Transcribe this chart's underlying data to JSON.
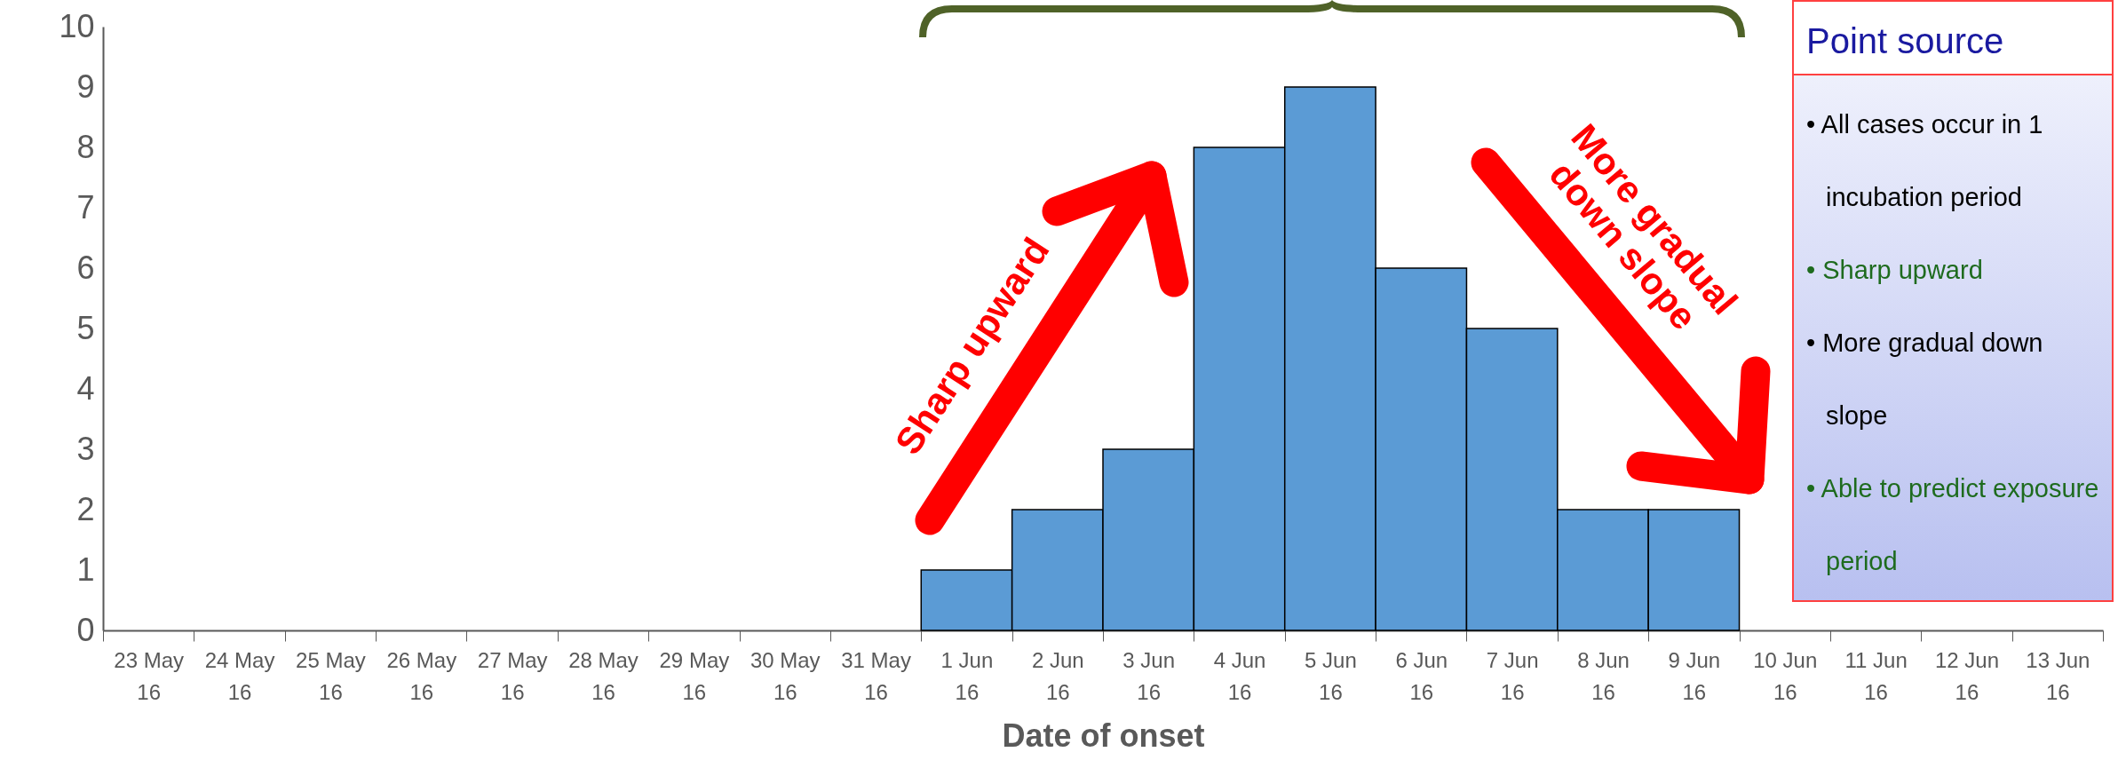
{
  "chart_data": {
    "type": "bar",
    "xlabel": "Date of onset",
    "categories": [
      "23 May 16",
      "24 May 16",
      "25 May 16",
      "26 May 16",
      "27 May 16",
      "28 May 16",
      "29 May 16",
      "30 May 16",
      "31 May 16",
      "1 Jun 16",
      "2 Jun 16",
      "3 Jun 16",
      "4 Jun 16",
      "5 Jun 16",
      "6 Jun 16",
      "7 Jun 16",
      "8 Jun 16",
      "9 Jun 16",
      "10 Jun 16",
      "11 Jun 16",
      "12 Jun 16",
      "13 Jun 16"
    ],
    "values": [
      0,
      0,
      0,
      0,
      0,
      0,
      0,
      0,
      0,
      1,
      2,
      3,
      8,
      9,
      6,
      5,
      2,
      2,
      0,
      0,
      0,
      0
    ],
    "color": "#5b9bd5",
    "ylim": [
      0,
      10
    ],
    "yticks": [
      0,
      1,
      2,
      3,
      4,
      5,
      6,
      7,
      8,
      9,
      10
    ],
    "grid": false,
    "annotations": [
      "Sharp upward",
      "More gradual down slope",
      "Point source",
      "• All cases occur in 1 incubation period",
      "• Sharp upward",
      "• More gradual down slope",
      "• Able to predict exposure period"
    ]
  }
}
